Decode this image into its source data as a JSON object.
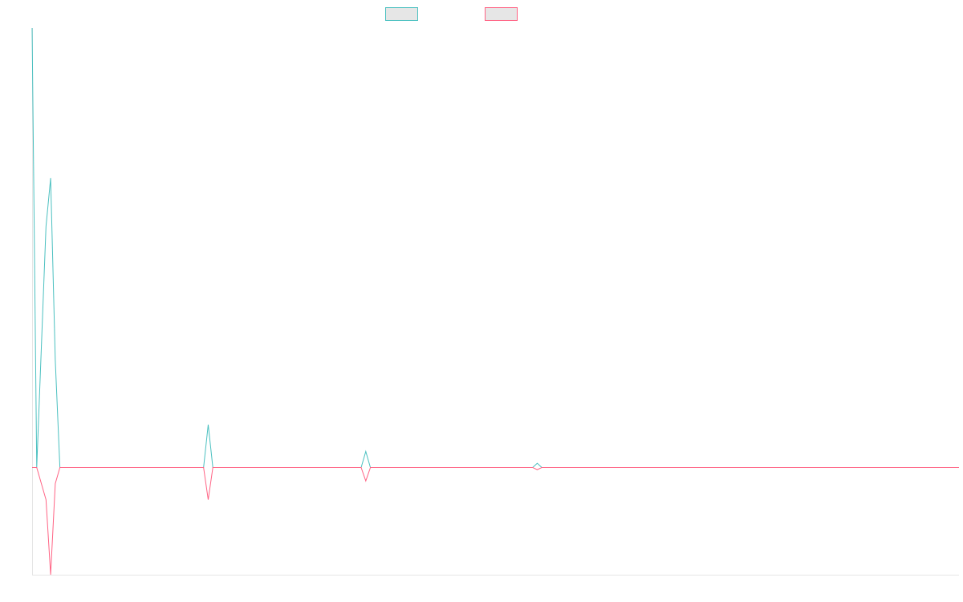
{
  "chart_data": {
    "type": "line",
    "title": "",
    "xlabel": "",
    "ylabel": "",
    "grid": false,
    "legend_placement": "top-center",
    "xlim": [
      0,
      200
    ],
    "ylim": [
      -20,
      82
    ],
    "x": [
      0,
      1,
      3,
      4,
      5,
      6,
      37,
      38,
      39,
      71,
      72,
      73,
      108,
      109,
      110,
      200
    ],
    "series": [
      {
        "color": "#4bc0c0",
        "fill": "#e6e6e6",
        "values": [
          82,
          0,
          45,
          54,
          20,
          0,
          0,
          8,
          0,
          0,
          3,
          0,
          0,
          0.8,
          0,
          0
        ]
      },
      {
        "color": "#ff6384",
        "fill": "#e6e6e6",
        "values": [
          0,
          0,
          -6,
          -20,
          -3,
          0,
          0,
          -6,
          0,
          0,
          -2.5,
          0,
          0,
          -0.4,
          0,
          0
        ]
      }
    ]
  }
}
